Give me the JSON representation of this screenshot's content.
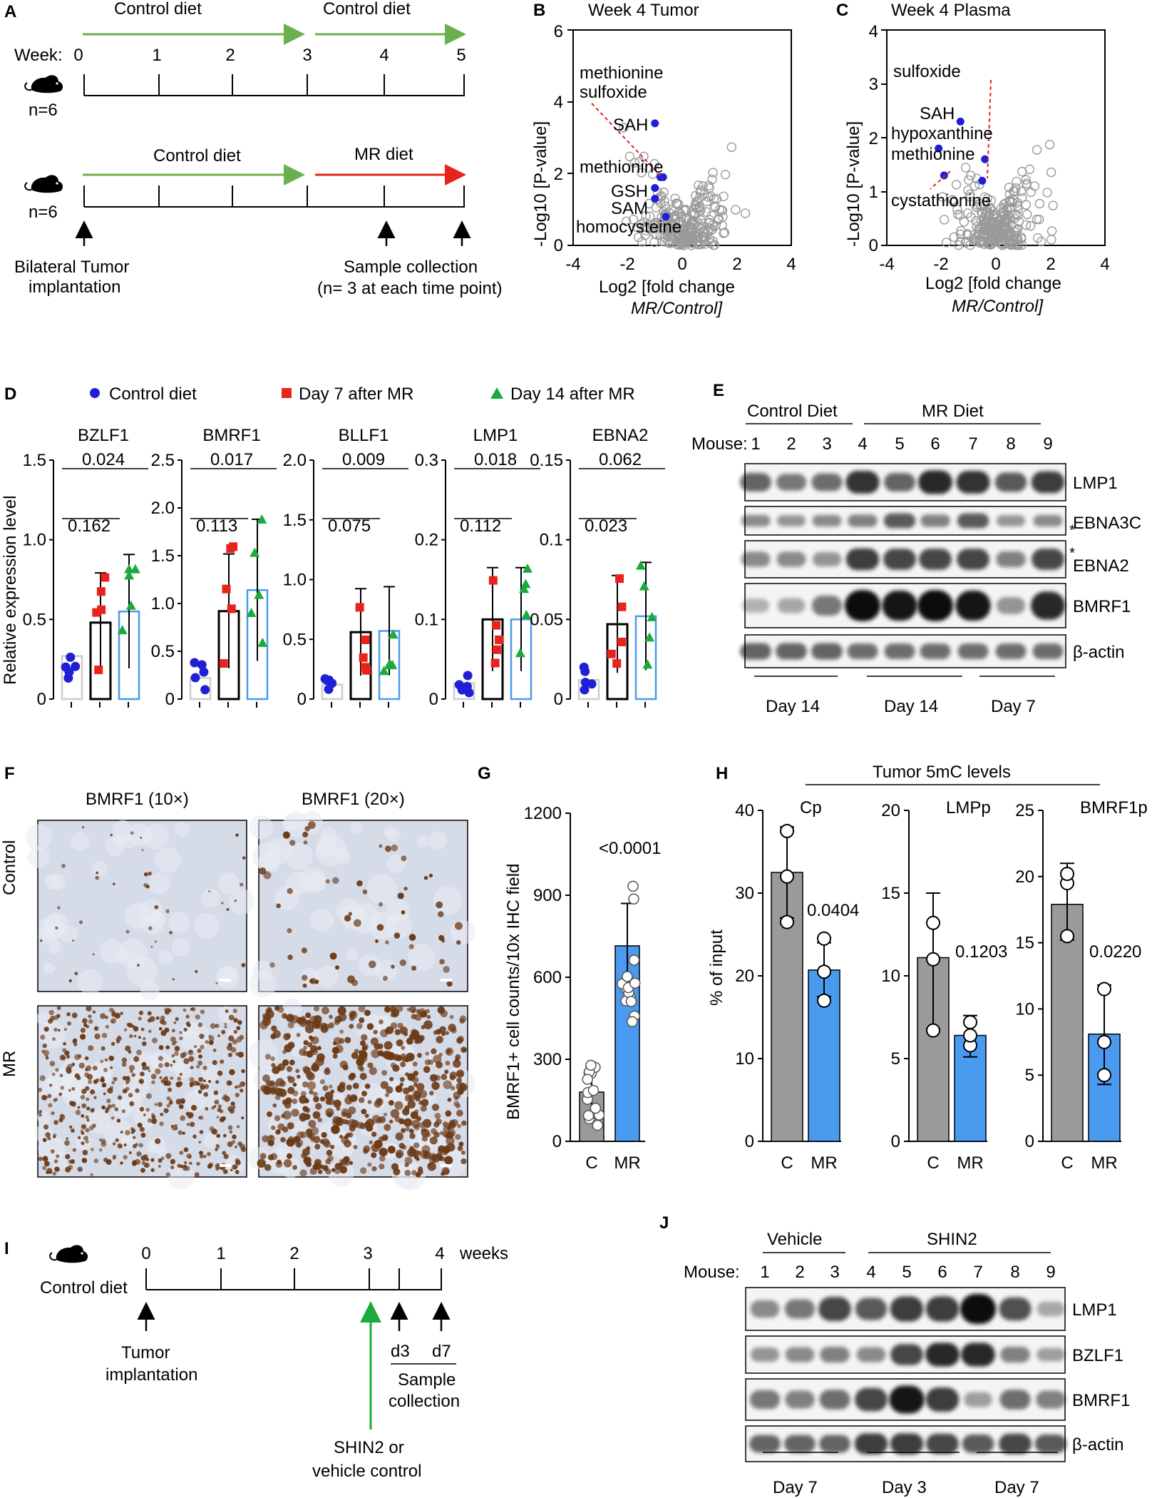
{
  "panels": [
    "A",
    "B",
    "C",
    "D",
    "E",
    "F",
    "G",
    "H",
    "I",
    "J"
  ],
  "colors": {
    "control_green": "#6ab04c",
    "mr_red": "#e8231c",
    "blue_marker": "#1f1fd6",
    "bar_blue": "#4a9af0",
    "bar_gray": "#9a9a9a",
    "sig_green": "#1aab3c"
  },
  "panelA": {
    "row1_label1": "Control diet",
    "row1_label2": "Control diet",
    "week_label": "Week:",
    "weeks": [
      "0",
      "1",
      "2",
      "3",
      "4",
      "5"
    ],
    "n1": "n=6",
    "row2_label1": "Control diet",
    "row2_label2": "MR diet",
    "n2": "n=6",
    "implant_1": "Bilateral Tumor",
    "implant_2": "implantation",
    "sample_1": "Sample collection",
    "sample_2": "(n= 3 at each time point)"
  },
  "panelB": {
    "title": "Week 4 Tumor",
    "ylabel": "-Log10 [P-value]",
    "xlabel1": "Log2 [fold change",
    "xlabel2": "MR/Control]",
    "labels": [
      "methionine",
      "sulfoxide",
      "SAH",
      "methionine",
      "GSH",
      "SAM",
      "homocysteine"
    ]
  },
  "panelC": {
    "title": "Week 4 Plasma",
    "ylabel": "-Log10 [P-value]",
    "xlabel1": "Log2 [fold change",
    "xlabel2": "MR/Control]",
    "labels": [
      "sulfoxide",
      "SAH",
      "hypoxanthine",
      "methionine",
      "cystathionine"
    ]
  },
  "panelD": {
    "legend": [
      "Control diet",
      "Day 7 after MR",
      "Day 14 after MR"
    ],
    "ylabel": "Relative expression level",
    "genes": [
      "BZLF1",
      "BMRF1",
      "BLLF1",
      "LMP1",
      "EBNA2"
    ],
    "pvals": [
      [
        "0.162",
        "0.024"
      ],
      [
        "0.113",
        "0.017"
      ],
      [
        "0.075",
        "0.009"
      ],
      [
        "0.112",
        "0.018"
      ],
      [
        "0.023",
        "0.062"
      ]
    ]
  },
  "panelE": {
    "control": "Control Diet",
    "mr": "MR Diet",
    "mouse": "Mouse:",
    "mice": [
      "1",
      "2",
      "3",
      "4",
      "5",
      "6",
      "7",
      "8",
      "9"
    ],
    "bands": [
      "LMP1",
      "EBNA3C",
      "EBNA2",
      "BMRF1",
      "β-actin"
    ],
    "star": "*",
    "days": [
      "Day 14",
      "Day 14",
      "Day 7"
    ]
  },
  "panelF": {
    "col1": "BMRF1 (10×)",
    "col2": "BMRF1 (20×)",
    "row1": "Control",
    "row2": "MR"
  },
  "panelG": {
    "ylabel": "BMRF1+ cell counts/10x IHC field",
    "pval": "<0.0001",
    "xcats": [
      "C",
      "MR"
    ],
    "yticks": [
      "0",
      "300",
      "600",
      "900",
      "1200"
    ]
  },
  "panelH": {
    "title": "Tumor 5mC levels",
    "ylabel": "% of input",
    "subtitles": [
      "Cp",
      "LMPp",
      "BMRF1p"
    ],
    "pvals": [
      "0.0404",
      "0.1203",
      "0.0220"
    ],
    "xcats": [
      "C",
      "MR"
    ]
  },
  "panelI": {
    "diet": "Control diet",
    "weeks": [
      "0",
      "1",
      "2",
      "3",
      "4"
    ],
    "weeks_label": "weeks",
    "tumor1": "Tumor",
    "tumor2": "implantation",
    "d3": "d3",
    "d7": "d7",
    "sample1": "Sample",
    "sample2": "collection",
    "shin1": "SHIN2 or",
    "shin2": "vehicle control"
  },
  "panelJ": {
    "vehicle": "Vehicle",
    "shin2": "SHIN2",
    "mouse": "Mouse:",
    "mice": [
      "1",
      "2",
      "3",
      "4",
      "5",
      "6",
      "7",
      "8",
      "9"
    ],
    "bands": [
      "LMP1",
      "BZLF1",
      "BMRF1",
      "β-actin"
    ],
    "days": [
      "Day 7",
      "Day 3",
      "Day 7"
    ]
  },
  "chart_data": [
    {
      "panel": "B",
      "type": "scatter",
      "title": "Week 4 Tumor",
      "xlim": [
        -4,
        4
      ],
      "ylim": [
        0,
        6
      ],
      "highlighted": [
        {
          "name": "methionine sulfoxide",
          "x": -0.8,
          "y": 1.9
        },
        {
          "name": "SAH",
          "x": -1.0,
          "y": 3.4
        },
        {
          "name": "methionine",
          "x": -0.7,
          "y": 1.9
        },
        {
          "name": "GSH",
          "x": -1.0,
          "y": 1.6
        },
        {
          "name": "SAM",
          "x": -1.0,
          "y": 1.3
        },
        {
          "name": "homocysteine",
          "x": -0.6,
          "y": 0.8
        }
      ]
    },
    {
      "panel": "C",
      "type": "scatter",
      "title": "Week 4 Plasma",
      "xlim": [
        -4,
        4
      ],
      "ylim": [
        0,
        4
      ],
      "highlighted": [
        {
          "name": "sulfoxide",
          "x": -0.5,
          "y": 1.2
        },
        {
          "name": "SAH",
          "x": -1.3,
          "y": 2.3
        },
        {
          "name": "hypoxanthine",
          "x": -2.1,
          "y": 1.8
        },
        {
          "name": "methionine",
          "x": -0.4,
          "y": 1.6
        },
        {
          "name": "cystathionine",
          "x": -1.9,
          "y": 1.3
        }
      ]
    },
    {
      "panel": "D-BZLF1",
      "type": "bar",
      "categories": [
        "Control diet",
        "Day 7 after MR",
        "Day 14 after MR"
      ],
      "values": [
        0.27,
        0.48,
        0.55
      ],
      "ylim": [
        0,
        1.5
      ]
    },
    {
      "panel": "D-BMRF1",
      "type": "bar",
      "categories": [
        "Control diet",
        "Day 7 after MR",
        "Day 14 after MR"
      ],
      "values": [
        0.22,
        0.92,
        1.14
      ],
      "ylim": [
        0,
        2.5
      ]
    },
    {
      "panel": "D-BLLF1",
      "type": "bar",
      "categories": [
        "Control diet",
        "Day 7 after MR",
        "Day 14 after MR"
      ],
      "values": [
        0.12,
        0.56,
        0.57
      ],
      "ylim": [
        0,
        2.0
      ]
    },
    {
      "panel": "D-LMP1",
      "type": "bar",
      "categories": [
        "Control diet",
        "Day 7 after MR",
        "Day 14 after MR"
      ],
      "values": [
        0.02,
        0.1,
        0.1
      ],
      "ylim": [
        0,
        0.3
      ]
    },
    {
      "panel": "D-EBNA2",
      "type": "bar",
      "categories": [
        "Control diet",
        "Day 7 after MR",
        "Day 14 after MR"
      ],
      "values": [
        0.012,
        0.047,
        0.052
      ],
      "ylim": [
        0,
        0.15
      ]
    },
    {
      "panel": "G",
      "type": "bar",
      "categories": [
        "C",
        "MR"
      ],
      "values": [
        180,
        715
      ],
      "ylim": [
        0,
        1200
      ]
    },
    {
      "panel": "H-Cp",
      "type": "bar",
      "categories": [
        "C",
        "MR"
      ],
      "values": [
        32.5,
        20.7
      ],
      "ylim": [
        0,
        40
      ]
    },
    {
      "panel": "H-LMPp",
      "type": "bar",
      "categories": [
        "C",
        "MR"
      ],
      "values": [
        11.1,
        6.4
      ],
      "ylim": [
        0,
        20
      ]
    },
    {
      "panel": "H-BMRF1p",
      "type": "bar",
      "categories": [
        "C",
        "MR"
      ],
      "values": [
        17.9,
        8.1
      ],
      "ylim": [
        0,
        25
      ]
    }
  ]
}
